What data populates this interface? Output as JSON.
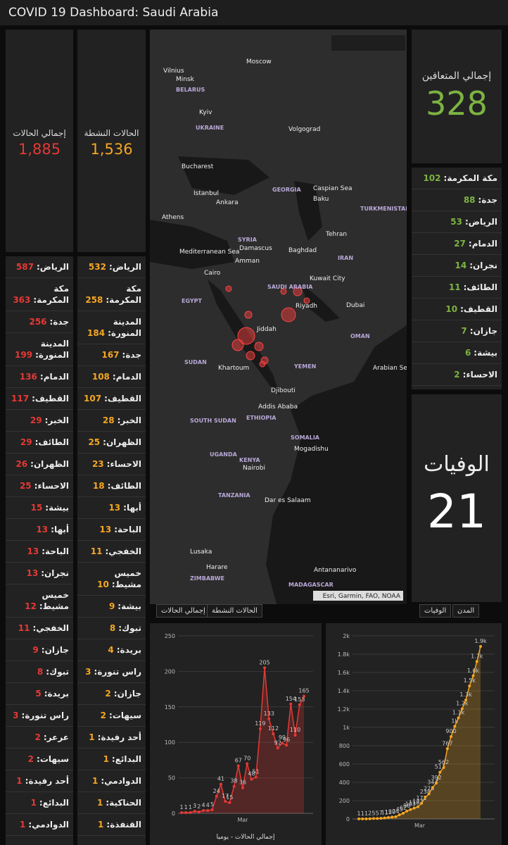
{
  "header": {
    "title": "COVID 19 Dashboard: Saudi Arabia"
  },
  "total_cases": {
    "label": "إجمالي الحالات",
    "value": "1,885"
  },
  "active_cases": {
    "label": "الحالات النشطة",
    "value": "1,536"
  },
  "recovered": {
    "label": "إجمالي المتعافين",
    "value": "328"
  },
  "deaths": {
    "label": "الوفيات",
    "value": "21"
  },
  "total_by_city": [
    [
      "الرياض:",
      587
    ],
    [
      "مكة المكرمة:",
      363
    ],
    [
      "جدة:",
      256
    ],
    [
      "المدينة المنورة:",
      199
    ],
    [
      "الدمام:",
      136
    ],
    [
      "القطيف:",
      117
    ],
    [
      "الخبر:",
      29
    ],
    [
      "الطائف:",
      29
    ],
    [
      "الظهران:",
      26
    ],
    [
      "الاحساء:",
      25
    ],
    [
      "بيشة:",
      15
    ],
    [
      "أبها:",
      13
    ],
    [
      "الباحة:",
      13
    ],
    [
      "نجران:",
      13
    ],
    [
      "خميس مشيط:",
      12
    ],
    [
      "الخفجي:",
      11
    ],
    [
      "جازان:",
      9
    ],
    [
      "تبوك:",
      8
    ],
    [
      "بريدة:",
      5
    ],
    [
      "راس تنورة:",
      3
    ],
    [
      "عرعر:",
      2
    ],
    [
      "سيهات:",
      2
    ],
    [
      "أحد رفيدة:",
      1
    ],
    [
      "البدائع:",
      1
    ],
    [
      "الدوادمي:",
      1
    ]
  ],
  "active_by_city": [
    [
      "الرياض:",
      532
    ],
    [
      "مكة المكرمة:",
      258
    ],
    [
      "المدينة المنورة:",
      184
    ],
    [
      "جدة:",
      167
    ],
    [
      "الدمام:",
      108
    ],
    [
      "القطيف:",
      107
    ],
    [
      "الخبر:",
      28
    ],
    [
      "الظهران:",
      25
    ],
    [
      "الاحساء:",
      23
    ],
    [
      "الطائف:",
      18
    ],
    [
      "أبها:",
      13
    ],
    [
      "الباحة:",
      13
    ],
    [
      "الخفجي:",
      11
    ],
    [
      "خميس مشيط:",
      10
    ],
    [
      "بيشة:",
      9
    ],
    [
      "تبوك:",
      8
    ],
    [
      "بريدة:",
      4
    ],
    [
      "راس تنورة:",
      3
    ],
    [
      "جازان:",
      2
    ],
    [
      "سيهات:",
      2
    ],
    [
      "أحد رفيدة:",
      1
    ],
    [
      "البدائع:",
      1
    ],
    [
      "الدوادمي:",
      1
    ],
    [
      "الحناكية:",
      1
    ],
    [
      "القنفذة:",
      1
    ]
  ],
  "recovered_by_city": [
    [
      "مكة المكرمة:",
      102
    ],
    [
      "جدة:",
      88
    ],
    [
      "الرياض:",
      53
    ],
    [
      "الدمام:",
      27
    ],
    [
      "نجران:",
      14
    ],
    [
      "الطائف:",
      11
    ],
    [
      "القطيف:",
      10
    ],
    [
      "جازان:",
      7
    ],
    [
      "بيشة:",
      6
    ],
    [
      "الاحساء:",
      2
    ]
  ],
  "map": {
    "labels": [
      "Moscow",
      "Minsk",
      "Vilnius",
      "BELARUS",
      "Kyiv",
      "UKRAINE",
      "Volgograd",
      "Bucharest",
      "Istanbul",
      "Ankara",
      "GEORGIA",
      "Baku",
      "Caspian Sea",
      "TURKMENISTAN",
      "Athens",
      "Mediterranean Sea",
      "SYRIA",
      "Damascus",
      "Baghdad",
      "Tehran",
      "IRAN",
      "Amman",
      "Cairo",
      "EGYPT",
      "Kuwait City",
      "SAUDI ARABIA",
      "Riyadh",
      "Dubai",
      "OMAN",
      "Jiddah",
      "SUDAN",
      "Khartoum",
      "YEMEN",
      "Arabian Sea",
      "Djibouti",
      "Addis Ababa",
      "ETHIOPIA",
      "SOUTH SUDAN",
      "SOMALIA",
      "Mogadishu",
      "UGANDA",
      "KENYA",
      "Nairobi",
      "TANZANIA",
      "Dar es Salaam",
      "Lusaka",
      "Harare",
      "ZIMBABWE",
      "Antananarivo",
      "MADAGASCAR"
    ],
    "attribution": "Esri, Garmin, FAO, NOAA",
    "tabs_left": [
      "إجمالي الحالات",
      "الحالات النشطة"
    ],
    "tabs_right": [
      "الوفيات",
      "المدن"
    ]
  },
  "daily_chart": {
    "type": "line",
    "color": "#e53935",
    "values": [
      1,
      1,
      1,
      3,
      2,
      4,
      4,
      5,
      24,
      41,
      17,
      15,
      38,
      67,
      36,
      70,
      48,
      51,
      119,
      205,
      133,
      112,
      92,
      99,
      96,
      154,
      110,
      153,
      165
    ],
    "ylim": [
      0,
      250
    ],
    "yticks": [
      0,
      50,
      100,
      150,
      200,
      250
    ],
    "x_label": "Mar",
    "footer": "إجمالي الحالات - يوميا"
  },
  "cumulative_chart": {
    "type": "line",
    "color": "#f5a623",
    "values": [
      1,
      1,
      1,
      2,
      5,
      5,
      7,
      11,
      15,
      20,
      24,
      45,
      62,
      86,
      103,
      118,
      133,
      171,
      238,
      274,
      344,
      392,
      511,
      562,
      767,
      900,
      1012,
      1104,
      1203,
      1299,
      1453,
      1563,
      1720,
      1885
    ],
    "value_labels": [
      "1",
      "1",
      "1",
      "2",
      "5",
      "5",
      "7",
      "11",
      "15",
      "20",
      "24",
      "45",
      "62",
      "86",
      "103",
      "118",
      "133",
      "171",
      "238",
      "274",
      "344",
      "392",
      "511",
      "562",
      "767",
      "900",
      "1k",
      "1.1k",
      "1.2k",
      "1.3k",
      "1.5k",
      "1.6k",
      "1.7k",
      "1.9k"
    ],
    "ylim": [
      0,
      2000
    ],
    "yticks": [
      0,
      200,
      400,
      600,
      800,
      {
        "value": 1000,
        "label": "1k"
      },
      {
        "value": 1200,
        "label": "1.2k"
      },
      {
        "value": 1400,
        "label": "1.4k"
      },
      {
        "value": 1600,
        "label": "1.6k"
      },
      {
        "value": 1800,
        "label": "1.8k"
      },
      {
        "value": 2000,
        "label": "2k"
      }
    ],
    "x_label": "Mar"
  }
}
